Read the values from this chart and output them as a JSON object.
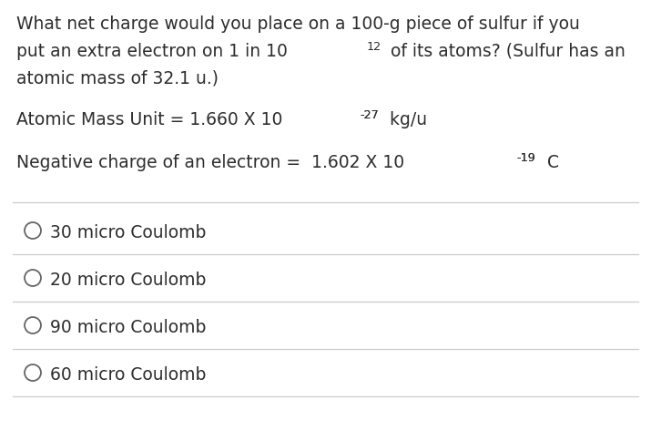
{
  "background_color": "#ffffff",
  "text_color": "#2d2d2d",
  "options": [
    "30 micro Coulomb",
    "20 micro Coulomb",
    "90 micro Coulomb",
    "60 micro Coulomb"
  ],
  "font_size": 13.5,
  "line_color": "#cccccc",
  "circle_color": "#666666"
}
